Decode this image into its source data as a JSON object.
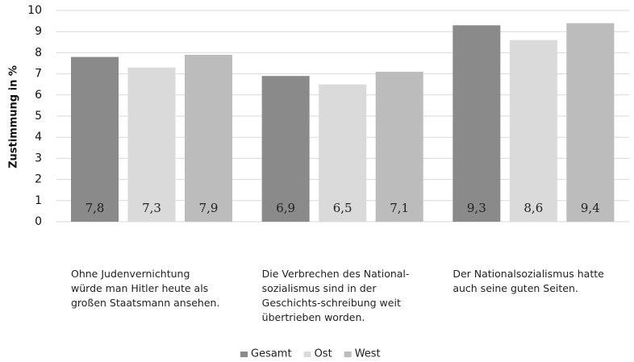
{
  "chart_data": {
    "type": "bar",
    "y_axis_label": "Zustimmung in %",
    "categories": [
      "Ohne Judenvernichtung würde man Hitler heute als großen Staatsmann ansehen.",
      "Die Verbrechen des National-sozialismus sind in der Geschichts-schreibung weit übertrieben worden.",
      "Der Nationalsozialismus hatte auch seine guten Seiten."
    ],
    "series": [
      {
        "name": "Gesamt",
        "color": "#8a8a8a",
        "values": [
          7.8,
          6.9,
          9.3
        ],
        "value_labels": [
          "7,8",
          "6,9",
          "9,3"
        ]
      },
      {
        "name": "Ost",
        "color": "#dadada",
        "values": [
          7.3,
          6.5,
          8.6
        ],
        "value_labels": [
          "7,3",
          "6,5",
          "8,6"
        ]
      },
      {
        "name": "West",
        "color": "#bcbcbc",
        "values": [
          7.9,
          7.1,
          9.4
        ],
        "value_labels": [
          "7,9",
          "7,1",
          "9,4"
        ]
      }
    ],
    "ylim": [
      0,
      10
    ],
    "yticks": [
      0,
      1,
      2,
      3,
      4,
      5,
      6,
      7,
      8,
      9,
      10
    ],
    "grid": true,
    "legend": "bottom"
  }
}
